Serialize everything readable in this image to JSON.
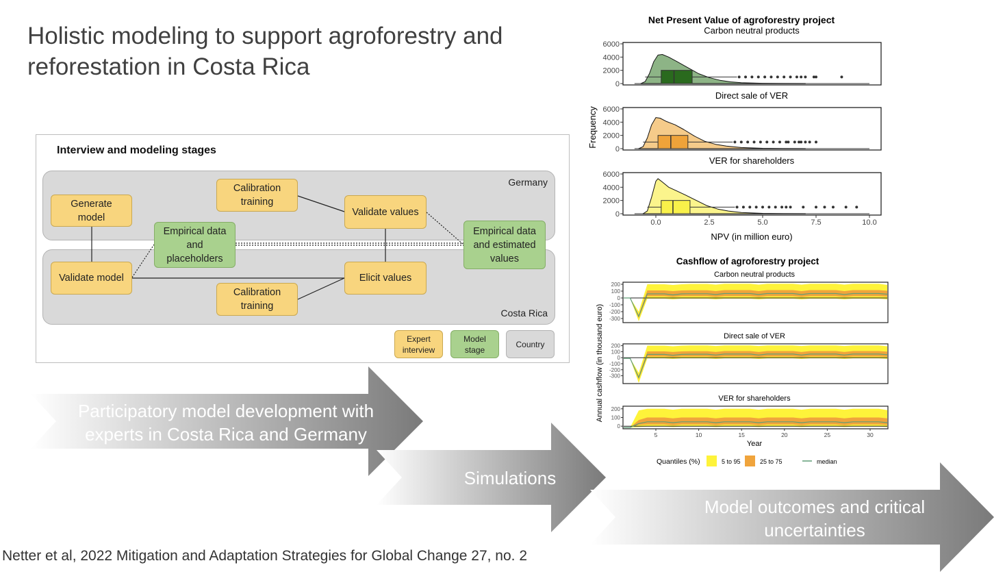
{
  "slide": {
    "title": "Holistic modeling to support agroforestry and reforestation in Costa Rica",
    "citation": "Netter et al, 2022 Mitigation and Adaptation Strategies for Global Change 27, no. 2"
  },
  "diagram": {
    "heading": "Interview and modeling stages",
    "regions": {
      "germany": "Germany",
      "costa_rica": "Costa Rica"
    },
    "nodes": {
      "generate_model": "Generate\nmodel",
      "calibration_training_top": "Calibration\ntraining",
      "validate_values": "Validate values",
      "empirical_placeholders": "Empirical data\nand\nplaceholders",
      "empirical_estimated": "Empirical data\nand estimated\nvalues",
      "validate_model": "Validate model",
      "elicit_values": "Elicit values",
      "calibration_training_bottom": "Calibration\ntraining"
    },
    "legend": {
      "expert": "Expert\ninterview",
      "model": "Model\nstage",
      "country": "Country"
    },
    "colors": {
      "expert": "#f8d57e",
      "model": "#a9d18e",
      "country": "#d9d9d9"
    }
  },
  "arrows": {
    "participatory": "Participatory model development with\nexperts in Costa Rica and Germany",
    "simulations": "Simulations",
    "outcomes": "Model outcomes and critical\nuncertainties"
  },
  "chart_data": [
    {
      "type": "density-boxplot",
      "title": "Net Present Value of agroforestry project",
      "xlabel": "NPV (in million euro)",
      "ylabel": "Frequency",
      "xlim": [
        -1.2,
        10.5
      ],
      "ylim": [
        0,
        6000
      ],
      "xticks": [
        "0.0",
        "2.5",
        "5.0",
        "7.5",
        "10.0"
      ],
      "yticks": [
        "0",
        "2000",
        "4000",
        "6000"
      ],
      "grid": false,
      "panels": [
        {
          "name": "Carbon neutral products",
          "density_color": "#8db486",
          "box_color": "#2a6a1e",
          "density_x": [
            -0.7,
            -0.5,
            -0.3,
            -0.1,
            0.1,
            0.3,
            0.6,
            1.0,
            1.5,
            2.0,
            2.5,
            3.0,
            3.5,
            4.0,
            5.0,
            6.0,
            7.0
          ],
          "density_y": [
            0,
            300,
            1500,
            3300,
            4300,
            4400,
            4000,
            3300,
            2400,
            1500,
            900,
            500,
            260,
            130,
            40,
            10,
            0
          ],
          "box": {
            "whisker_low": -0.5,
            "q1": 0.25,
            "median": 0.85,
            "q3": 1.7,
            "whisker_high": 3.8
          },
          "outliers": [
            3.9,
            4.2,
            4.5,
            4.8,
            5.1,
            5.4,
            5.7,
            6.0,
            6.3,
            6.6,
            6.8,
            7.0,
            7.4,
            7.5,
            8.7
          ]
        },
        {
          "name": "Direct sale of VER",
          "density_color": "#f5cb8a",
          "box_color": "#efa33a",
          "density_x": [
            -0.8,
            -0.6,
            -0.4,
            -0.2,
            0.0,
            0.2,
            0.5,
            0.9,
            1.3,
            1.8,
            2.3,
            2.8,
            3.3,
            4.0,
            5.0,
            6.0,
            7.0
          ],
          "density_y": [
            0,
            300,
            1600,
            3600,
            4700,
            4600,
            4100,
            3600,
            2900,
            1900,
            1100,
            650,
            380,
            170,
            50,
            10,
            0
          ],
          "box": {
            "whisker_low": -0.6,
            "q1": 0.1,
            "median": 0.7,
            "q3": 1.5,
            "whisker_high": 3.6
          },
          "outliers": [
            3.7,
            4.0,
            4.3,
            4.6,
            4.9,
            5.2,
            5.5,
            5.8,
            6.1,
            6.2,
            6.5,
            6.7,
            6.8,
            7.0,
            7.2,
            7.5
          ]
        },
        {
          "name": "VER for shareholders",
          "density_color": "#fbf48c",
          "box_color": "#f9f14a",
          "density_x": [
            -0.6,
            -0.4,
            -0.2,
            0.0,
            0.1,
            0.3,
            0.6,
            1.0,
            1.4,
            1.9,
            2.4,
            2.9,
            3.4,
            4.0,
            5.0,
            6.0,
            7.0
          ],
          "density_y": [
            0,
            400,
            2500,
            4900,
            5300,
            4800,
            4000,
            3400,
            2800,
            2000,
            1200,
            700,
            400,
            180,
            50,
            10,
            0
          ],
          "box": {
            "whisker_low": -0.4,
            "q1": 0.25,
            "median": 0.8,
            "q3": 1.6,
            "whisker_high": 3.7
          },
          "outliers": [
            3.8,
            4.1,
            4.4,
            4.7,
            5.0,
            5.3,
            5.6,
            5.9,
            6.1,
            6.3,
            6.9,
            7.5,
            7.9,
            8.3,
            8.9,
            9.4
          ]
        }
      ]
    },
    {
      "type": "area",
      "title": "Cashflow of agroforestry project",
      "xlabel": "Year",
      "ylabel": "Annual cashflow (in thousand euro)",
      "xlim": [
        1.2,
        32.2
      ],
      "xticks": [
        "5",
        "10",
        "15",
        "20",
        "25",
        "30"
      ],
      "legend": {
        "title": "Quantiles (%)",
        "items": [
          {
            "label": "5 to 95",
            "color": "#fef33a"
          },
          {
            "label": "25 to 75",
            "color": "#f0a43c"
          },
          {
            "label": "median",
            "color": "#5f9e77"
          }
        ],
        "position": "bottom"
      },
      "years": [
        1,
        2,
        3,
        4,
        5,
        6,
        7,
        8,
        9,
        10,
        11,
        12,
        13,
        14,
        15,
        16,
        17,
        18,
        19,
        20,
        21,
        22,
        23,
        24,
        25,
        26,
        27,
        28,
        29,
        30,
        31,
        32
      ],
      "panels": [
        {
          "name": "Carbon neutral products",
          "ylim": [
            -360,
            230
          ],
          "yticks": [
            "200",
            "100",
            "0",
            "-100",
            "-200",
            "-300"
          ],
          "q05": [
            0,
            0,
            -340,
            -10,
            -10,
            -10,
            -20,
            -10,
            -10,
            -10,
            -10,
            -20,
            -10,
            -10,
            -10,
            -10,
            -20,
            -10,
            -10,
            -10,
            -10,
            -20,
            -10,
            -10,
            -10,
            -10,
            -20,
            -10,
            -10,
            -10,
            -10,
            -20
          ],
          "q25": [
            0,
            0,
            -295,
            25,
            25,
            25,
            15,
            25,
            25,
            25,
            25,
            15,
            25,
            25,
            25,
            25,
            15,
            25,
            25,
            25,
            25,
            15,
            25,
            25,
            25,
            25,
            15,
            25,
            25,
            25,
            25,
            20
          ],
          "median": [
            0,
            0,
            -270,
            60,
            60,
            60,
            45,
            60,
            62,
            62,
            62,
            50,
            65,
            65,
            65,
            65,
            50,
            65,
            65,
            65,
            65,
            50,
            65,
            65,
            65,
            65,
            50,
            65,
            65,
            65,
            65,
            55
          ],
          "q75": [
            0,
            0,
            -245,
            110,
            110,
            110,
            100,
            110,
            112,
            112,
            112,
            100,
            115,
            115,
            115,
            115,
            100,
            115,
            115,
            115,
            115,
            100,
            115,
            115,
            115,
            115,
            100,
            115,
            115,
            115,
            115,
            105
          ],
          "q95": [
            0,
            0,
            -200,
            200,
            200,
            200,
            190,
            200,
            205,
            205,
            205,
            195,
            208,
            208,
            208,
            208,
            195,
            208,
            208,
            208,
            208,
            195,
            208,
            208,
            208,
            208,
            195,
            208,
            208,
            208,
            208,
            190
          ]
        },
        {
          "name": "Direct sale of VER",
          "ylim": [
            -430,
            230
          ],
          "yticks": [
            "200",
            "100",
            "0",
            "-100",
            "-200",
            "-300"
          ],
          "q05": [
            -10,
            -10,
            -420,
            -10,
            -10,
            -10,
            -20,
            -10,
            -10,
            -10,
            -10,
            -20,
            -10,
            -10,
            -10,
            -10,
            -20,
            -10,
            -10,
            -10,
            -10,
            -20,
            -10,
            -10,
            -10,
            -10,
            -20,
            -10,
            -10,
            -10,
            -10,
            -20
          ],
          "q25": [
            -10,
            -10,
            -360,
            20,
            20,
            20,
            10,
            20,
            20,
            20,
            20,
            10,
            20,
            20,
            20,
            20,
            10,
            20,
            20,
            20,
            20,
            10,
            20,
            20,
            20,
            20,
            10,
            20,
            20,
            20,
            20,
            15
          ],
          "median": [
            -10,
            -10,
            -330,
            55,
            55,
            55,
            40,
            55,
            58,
            58,
            58,
            45,
            60,
            60,
            60,
            60,
            45,
            60,
            60,
            60,
            60,
            45,
            60,
            60,
            60,
            60,
            45,
            60,
            60,
            60,
            60,
            50
          ],
          "q75": [
            -10,
            -10,
            -300,
            105,
            105,
            105,
            95,
            105,
            108,
            108,
            108,
            95,
            110,
            110,
            110,
            110,
            95,
            110,
            110,
            110,
            110,
            95,
            110,
            110,
            110,
            110,
            95,
            110,
            110,
            110,
            110,
            100
          ],
          "q95": [
            -10,
            -10,
            -250,
            200,
            200,
            200,
            190,
            200,
            205,
            205,
            205,
            195,
            205,
            205,
            205,
            205,
            195,
            205,
            205,
            205,
            205,
            195,
            205,
            205,
            205,
            205,
            195,
            205,
            205,
            205,
            205,
            190
          ]
        },
        {
          "name": "VER for shareholders",
          "ylim": [
            -30,
            230
          ],
          "yticks": [
            "200",
            "100",
            "0"
          ],
          "q05": [
            -15,
            -15,
            -10,
            -5,
            -5,
            -5,
            -10,
            -5,
            -5,
            -5,
            -5,
            -10,
            -5,
            -5,
            -5,
            -5,
            -10,
            -5,
            -5,
            -5,
            -5,
            -10,
            -5,
            -5,
            -5,
            -5,
            -10,
            -5,
            -5,
            -5,
            -5,
            -10
          ],
          "q25": [
            -15,
            -15,
            15,
            20,
            20,
            20,
            12,
            20,
            20,
            20,
            20,
            12,
            20,
            20,
            20,
            20,
            12,
            20,
            20,
            20,
            20,
            12,
            20,
            20,
            20,
            20,
            12,
            20,
            20,
            20,
            20,
            15
          ],
          "median": [
            -15,
            -15,
            30,
            50,
            50,
            50,
            40,
            50,
            50,
            50,
            50,
            40,
            50,
            50,
            50,
            50,
            40,
            50,
            50,
            50,
            50,
            40,
            50,
            50,
            50,
            50,
            40,
            50,
            50,
            50,
            50,
            40
          ],
          "q75": [
            -15,
            -15,
            70,
            100,
            100,
            100,
            90,
            100,
            100,
            100,
            100,
            90,
            100,
            100,
            100,
            100,
            90,
            100,
            100,
            100,
            100,
            90,
            100,
            100,
            100,
            100,
            90,
            100,
            100,
            100,
            100,
            90
          ],
          "q95": [
            -15,
            -15,
            180,
            200,
            200,
            200,
            190,
            200,
            200,
            200,
            200,
            190,
            200,
            200,
            200,
            200,
            190,
            200,
            200,
            200,
            200,
            190,
            200,
            200,
            200,
            200,
            190,
            200,
            200,
            200,
            200,
            185
          ]
        }
      ]
    }
  ]
}
